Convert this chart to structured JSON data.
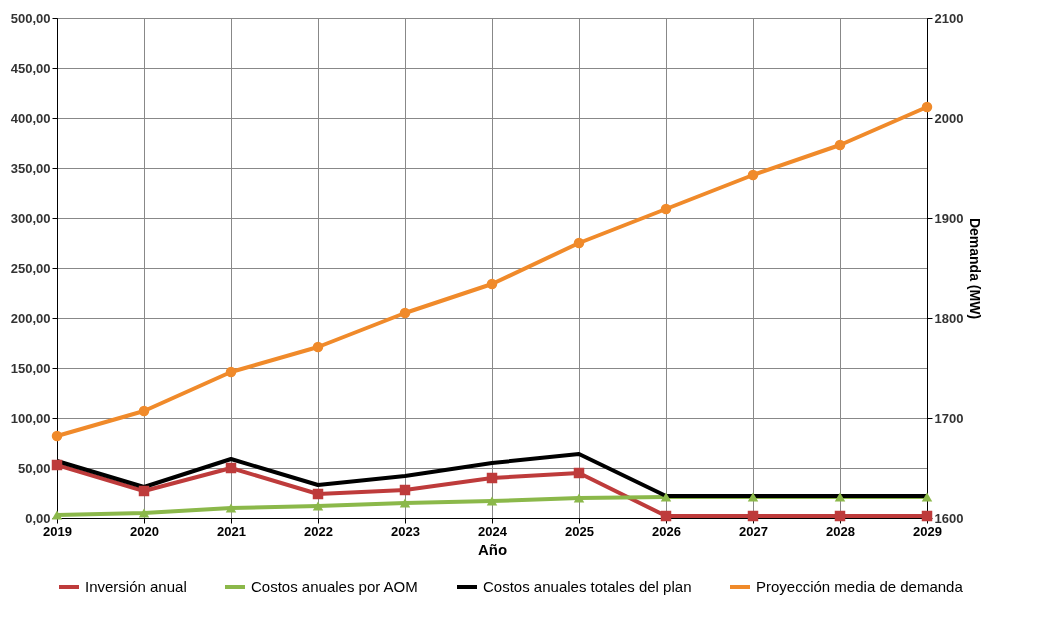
{
  "chart_data": {
    "type": "line",
    "xlabel": "Año",
    "y2label": "Demanda (MW)",
    "x": [
      2019,
      2020,
      2021,
      2022,
      2023,
      2024,
      2025,
      2026,
      2027,
      2028,
      2029
    ],
    "xlim": [
      2019,
      2029
    ],
    "xticks": [
      2019,
      2020,
      2021,
      2022,
      2023,
      2024,
      2025,
      2026,
      2027,
      2028,
      2029
    ],
    "ylim": [
      0,
      500
    ],
    "yticks": [
      {
        "value": 0,
        "label": "0,00"
      },
      {
        "value": 50,
        "label": "50,00"
      },
      {
        "value": 100,
        "label": "100,00"
      },
      {
        "value": 150,
        "label": "150,00"
      },
      {
        "value": 200,
        "label": "200,00"
      },
      {
        "value": 250,
        "label": "250,00"
      },
      {
        "value": 300,
        "label": "300,00"
      },
      {
        "value": 350,
        "label": "350,00"
      },
      {
        "value": 400,
        "label": "400,00"
      },
      {
        "value": 450,
        "label": "450,00"
      },
      {
        "value": 500,
        "label": "500,00"
      }
    ],
    "y2lim": [
      1600,
      2100
    ],
    "y2ticks": [
      1600,
      1700,
      1800,
      1900,
      2000,
      2100
    ],
    "grid": true,
    "legend": "bottom",
    "line_style": "solid",
    "series": [
      {
        "name": "Inversión anual",
        "color": "#be3b3b",
        "marker": "square",
        "values": [
          53,
          27,
          50,
          24,
          28,
          40,
          45,
          2,
          2,
          2,
          2
        ]
      },
      {
        "name": "Costos anuales por AOM",
        "color": "#8bb84a",
        "marker": "triangle",
        "values": [
          3,
          5,
          10,
          12,
          15,
          17,
          20,
          21,
          21,
          21,
          21
        ]
      },
      {
        "name": "Costos anuales totales del plan",
        "color": "#000000",
        "marker": "none",
        "values": [
          57,
          31,
          59,
          33,
          42,
          55,
          64,
          22,
          22,
          22,
          22
        ]
      },
      {
        "name": "Proyección media de demanda",
        "color": "#f08a2a",
        "marker": "circle",
        "axis": "y2",
        "values": [
          1682,
          1707,
          1746,
          1771,
          1805,
          1834,
          1875,
          1909,
          1943,
          1973,
          2011
        ]
      }
    ]
  }
}
